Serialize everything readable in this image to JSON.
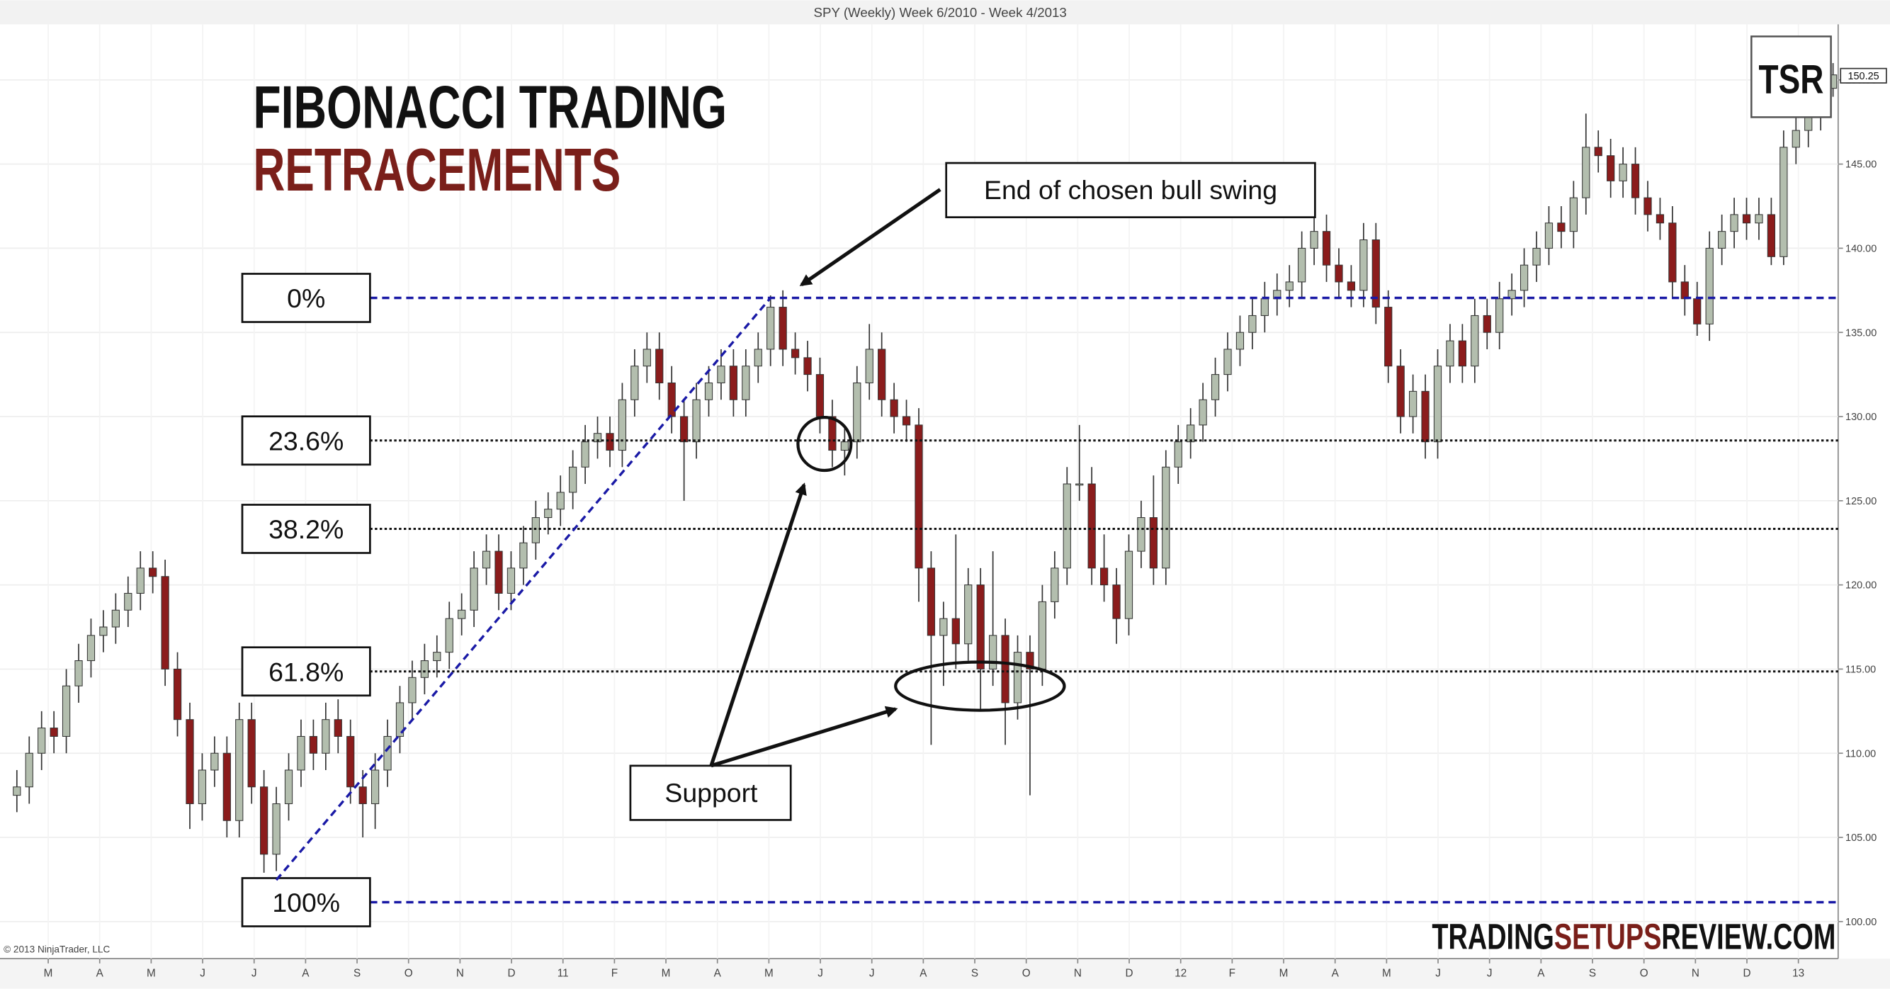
{
  "chart_data": {
    "type": "candlestick",
    "title": "SPY (Weekly)  Week 6/2010 - Week 4/2013",
    "heading": [
      "FIBONACCI TRADING",
      "RETRACEMENTS"
    ],
    "open": [
      107.5,
      108,
      110,
      111.5,
      111,
      114,
      115.5,
      117,
      117.5,
      118.5,
      119.5,
      121,
      120.5,
      115,
      112,
      107,
      109,
      110,
      106,
      112,
      108,
      104,
      107,
      109,
      111,
      110,
      112,
      111,
      108,
      107,
      109,
      111,
      113,
      114.5,
      115.5,
      116,
      118,
      118.5,
      121,
      122,
      119.5,
      121,
      122.5,
      124,
      124.5,
      125.5,
      127,
      128.5,
      129,
      128,
      131,
      133,
      134,
      132,
      130,
      128.5,
      131,
      132,
      133,
      131,
      133,
      134,
      136.5,
      134,
      133.5,
      132.5,
      130,
      128,
      128.5,
      132,
      134,
      131,
      130,
      129.5,
      121,
      117,
      118,
      116.5,
      120,
      115,
      117,
      113,
      116,
      115,
      119,
      121,
      126,
      126,
      121,
      120,
      118,
      122,
      124,
      121,
      127,
      128.5,
      129.5,
      131,
      132.5,
      134,
      135,
      136,
      137,
      137.5,
      138,
      140,
      141,
      139,
      138,
      137.5,
      140.5,
      136.5,
      133,
      130,
      131.5,
      128.5,
      133,
      134.5,
      133,
      136,
      135,
      137,
      137.5,
      139,
      140,
      141.5,
      141,
      143,
      146,
      145.5,
      144,
      145,
      143,
      142,
      141.5,
      138,
      137,
      135.5,
      140,
      141,
      142,
      141.5,
      142,
      139.5,
      146,
      147,
      148,
      149.5
    ],
    "high": [
      109,
      111,
      112.5,
      112.5,
      115,
      116.5,
      118,
      118.5,
      119.5,
      120.5,
      122,
      122,
      121.5,
      116,
      113,
      110,
      111,
      111,
      113,
      113,
      109,
      108,
      110,
      112,
      112,
      113,
      113.2,
      112,
      109,
      110,
      112,
      114,
      115.5,
      116.5,
      117,
      119,
      119.5,
      122,
      123,
      123,
      122,
      123.5,
      125,
      125.5,
      126.5,
      128,
      129.5,
      130,
      130,
      132,
      134,
      135,
      135,
      133,
      131,
      132,
      133,
      134,
      134,
      134,
      135,
      137.2,
      137.5,
      135,
      134.5,
      133.5,
      131,
      129.5,
      133,
      135.5,
      135,
      132,
      131,
      130.5,
      122,
      119,
      123,
      121,
      121,
      122,
      118,
      117,
      117,
      120,
      122,
      127,
      129.5,
      127,
      123,
      121,
      123,
      125,
      126.5,
      128,
      129.5,
      130.5,
      132,
      133.5,
      135,
      136,
      137,
      138,
      138.5,
      139,
      141,
      142,
      142,
      140,
      139,
      141.5,
      141.5,
      137.5,
      134,
      132.5,
      132.5,
      134,
      135.5,
      135.5,
      137,
      137,
      138,
      138.5,
      140,
      141,
      142.5,
      142.5,
      144,
      148,
      147,
      146.5,
      146,
      146,
      144,
      143,
      142.5,
      139,
      138,
      141,
      142,
      143,
      143,
      143,
      143,
      147,
      148,
      149,
      150.5,
      151
    ],
    "low": [
      106.5,
      107,
      109,
      110,
      110,
      113,
      114.5,
      116,
      116.5,
      117.5,
      118.5,
      119.5,
      114,
      111,
      105.5,
      106,
      108,
      105,
      105,
      107,
      102.9,
      103,
      106,
      108,
      109,
      109,
      110,
      107,
      105,
      105.5,
      108,
      110,
      112,
      113.5,
      114.5,
      115,
      117,
      117.5,
      120,
      118.5,
      118.5,
      120,
      121.5,
      123,
      123.5,
      124.5,
      126,
      127.5,
      127,
      127,
      130,
      132,
      131,
      129,
      125,
      127.5,
      130,
      131,
      130,
      130,
      132,
      133,
      133,
      132.5,
      131.5,
      129,
      127,
      126.5,
      127.5,
      131,
      130,
      129,
      128.5,
      119,
      110.5,
      114,
      115,
      115.5,
      112.5,
      114,
      110.5,
      112,
      107.5,
      114,
      118,
      120,
      125,
      120,
      119,
      116.5,
      117,
      121,
      120,
      120,
      126,
      127.5,
      128.5,
      130,
      131.5,
      133,
      134,
      135,
      136,
      136.5,
      137,
      139,
      138,
      137,
      136.5,
      136.5,
      135.5,
      132,
      129,
      129,
      127.5,
      127.5,
      132,
      132,
      132,
      134,
      134,
      136,
      136.5,
      138,
      139,
      140,
      140,
      142,
      144.5,
      143,
      143,
      142,
      141,
      140.5,
      137,
      136,
      134.8,
      134.5,
      139,
      140,
      140.5,
      140.5,
      139,
      139,
      145,
      146,
      147,
      149
    ],
    "close": [
      108,
      110,
      111.5,
      111,
      114,
      115.5,
      117,
      117.5,
      118.5,
      119.5,
      121,
      120.5,
      115,
      112,
      107,
      109,
      110,
      106,
      112,
      108,
      104,
      107,
      109,
      111,
      110,
      112,
      111,
      108,
      107,
      109,
      111,
      113,
      114.5,
      115.5,
      116,
      118,
      118.5,
      121,
      122,
      119.5,
      121,
      122.5,
      124,
      124.5,
      125.5,
      127,
      128.5,
      129,
      128,
      131,
      133,
      134,
      132,
      130,
      128.5,
      131,
      132,
      133,
      131,
      133,
      134,
      136.5,
      134,
      133.5,
      132.5,
      130,
      128,
      128.5,
      132,
      134,
      131,
      130,
      129.5,
      121,
      117,
      118,
      116.5,
      120,
      115,
      117,
      113,
      116,
      115,
      119,
      121,
      126,
      126,
      121,
      120,
      118,
      122,
      124,
      121,
      127,
      128.5,
      129.5,
      131,
      132.5,
      134,
      135,
      136,
      137,
      137.5,
      138,
      140,
      141,
      139,
      138,
      137.5,
      140.5,
      136.5,
      133,
      130,
      131.5,
      128.5,
      133,
      134.5,
      133,
      136,
      135,
      137,
      137.5,
      139,
      140,
      141.5,
      141,
      143,
      146,
      145.5,
      144,
      145,
      143,
      142,
      141.5,
      138,
      137,
      135.5,
      140,
      141,
      142,
      141.5,
      142,
      139.5,
      146,
      147,
      148,
      149.5,
      150.3
    ],
    "up_color": "#b3beae",
    "down_color": "#8b1c1c",
    "xtick_labels": [
      "M",
      "A",
      "M",
      "J",
      "J",
      "A",
      "S",
      "O",
      "N",
      "D",
      "11",
      "F",
      "M",
      "A",
      "M",
      "J",
      "J",
      "A",
      "S",
      "O",
      "N",
      "D",
      "12",
      "F",
      "M",
      "A",
      "M",
      "J",
      "J",
      "A",
      "S",
      "O",
      "N",
      "D",
      "13"
    ],
    "ylim": [
      97.8,
      153.3
    ],
    "yticks": [
      {
        "value": 100,
        "label": "100.00"
      },
      {
        "value": 105,
        "label": "105.00"
      },
      {
        "value": 110,
        "label": "110.00"
      },
      {
        "value": 115,
        "label": "115.00"
      },
      {
        "value": 120,
        "label": "120.00"
      },
      {
        "value": 125,
        "label": "125.00"
      },
      {
        "value": 130,
        "label": "130.00"
      },
      {
        "value": 135,
        "label": "135.00"
      },
      {
        "value": 140,
        "label": "140.00"
      },
      {
        "value": 145,
        "label": "145.00"
      },
      {
        "value": 150,
        "label": "150.00"
      }
    ],
    "grid": true,
    "last_price": 150.25,
    "fib_levels": [
      {
        "label": "0%",
        "value": 137.05,
        "style": "dashed",
        "color": "#1a1aa6"
      },
      {
        "label": "23.6%",
        "value": 128.58,
        "style": "dotted",
        "color": "#111111"
      },
      {
        "label": "38.2%",
        "value": 123.33,
        "style": "dotted",
        "color": "#111111"
      },
      {
        "label": "61.8%",
        "value": 114.86,
        "style": "dotted",
        "color": "#111111"
      },
      {
        "label": "100%",
        "value": 101.15,
        "style": "dashed",
        "color": "#1a1aa6"
      }
    ],
    "annotations": [
      "End of chosen bull swing",
      "Support"
    ],
    "copyright": "© 2013 NinjaTrader, LLC",
    "logo": "TSR",
    "website": [
      "TRADING",
      "SETUPS",
      "REVIEW.COM"
    ]
  }
}
